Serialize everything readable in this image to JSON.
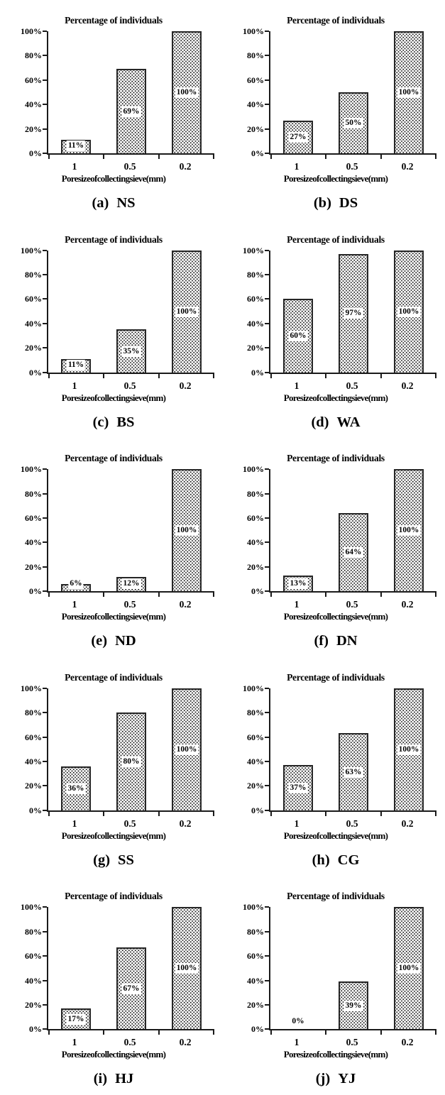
{
  "figure": {
    "background_color": "#ffffff",
    "text_color": "#000000",
    "bar_border_color": "#262626",
    "bar_fill": "white with fine black dot stipple pattern",
    "layout": "2 columns x 5 rows of small-multiple bar charts"
  },
  "chart_data": [
    {
      "type": "bar",
      "panel_label": "(a)",
      "site_code": "NS",
      "title": "Percentage of individuals",
      "xlabel": "Pore size of collecting sieve (mm)",
      "categories": [
        "1",
        "0.5",
        "0.2"
      ],
      "values": [
        11,
        69,
        100
      ],
      "value_labels": [
        "11%",
        "69%",
        "100%"
      ],
      "ylim": [
        0,
        100
      ],
      "ytick_labels": [
        "0%",
        "20%",
        "40%",
        "60%",
        "80%",
        "100%"
      ],
      "grid": false,
      "legend": "none"
    },
    {
      "type": "bar",
      "panel_label": "(b)",
      "site_code": "DS",
      "title": "Percentage of individuals",
      "xlabel": "Pore size of collecting sieve (mm)",
      "categories": [
        "1",
        "0.5",
        "0.2"
      ],
      "values": [
        27,
        50,
        100
      ],
      "value_labels": [
        "27%",
        "50%",
        "100%"
      ],
      "ylim": [
        0,
        100
      ],
      "ytick_labels": [
        "0%",
        "20%",
        "40%",
        "60%",
        "80%",
        "100%"
      ],
      "grid": false,
      "legend": "none"
    },
    {
      "type": "bar",
      "panel_label": "(c)",
      "site_code": "BS",
      "title": "Percentage of individuals",
      "xlabel": "Pore size of collecting sieve (mm)",
      "categories": [
        "1",
        "0.5",
        "0.2"
      ],
      "values": [
        11,
        35,
        100
      ],
      "value_labels": [
        "11%",
        "35%",
        "100%"
      ],
      "ylim": [
        0,
        100
      ],
      "ytick_labels": [
        "0%",
        "20%",
        "40%",
        "60%",
        "80%",
        "100%"
      ],
      "grid": false,
      "legend": "none"
    },
    {
      "type": "bar",
      "panel_label": "(d)",
      "site_code": "WA",
      "title": "Percentage of individuals",
      "xlabel": "Pore size of collecting sieve (mm)",
      "categories": [
        "1",
        "0.5",
        "0.2"
      ],
      "values": [
        60,
        97,
        100
      ],
      "value_labels": [
        "60%",
        "97%",
        "100%"
      ],
      "ylim": [
        0,
        100
      ],
      "ytick_labels": [
        "0%",
        "20%",
        "40%",
        "60%",
        "80%",
        "100%"
      ],
      "grid": false,
      "legend": "none"
    },
    {
      "type": "bar",
      "panel_label": "(e)",
      "site_code": "ND",
      "title": "Percentage of individuals",
      "xlabel": "Pore size of collecting sieve (mm)",
      "categories": [
        "1",
        "0.5",
        "0.2"
      ],
      "values": [
        6,
        12,
        100
      ],
      "value_labels": [
        "6%",
        "12%",
        "100%"
      ],
      "ylim": [
        0,
        100
      ],
      "ytick_labels": [
        "0%",
        "20%",
        "40%",
        "60%",
        "80%",
        "100%"
      ],
      "grid": false,
      "legend": "none"
    },
    {
      "type": "bar",
      "panel_label": "(f)",
      "site_code": "DN",
      "title": "Percentage of individuals",
      "xlabel": "Pore size of collecting sieve (mm)",
      "categories": [
        "1",
        "0.5",
        "0.2"
      ],
      "values": [
        13,
        64,
        100
      ],
      "value_labels": [
        "13%",
        "64%",
        "100%"
      ],
      "ylim": [
        0,
        100
      ],
      "ytick_labels": [
        "0%",
        "20%",
        "40%",
        "60%",
        "80%",
        "100%"
      ],
      "grid": false,
      "legend": "none"
    },
    {
      "type": "bar",
      "panel_label": "(g)",
      "site_code": "SS",
      "title": "Percentage of individuals",
      "xlabel": "Pore size of collecting sieve (mm)",
      "categories": [
        "1",
        "0.5",
        "0.2"
      ],
      "values": [
        36,
        80,
        100
      ],
      "value_labels": [
        "36%",
        "80%",
        "100%"
      ],
      "ylim": [
        0,
        100
      ],
      "ytick_labels": [
        "0%",
        "20%",
        "40%",
        "60%",
        "80%",
        "100%"
      ],
      "grid": false,
      "legend": "none"
    },
    {
      "type": "bar",
      "panel_label": "(h)",
      "site_code": "CG",
      "title": "Percentage of individuals",
      "xlabel": "Pore size of collecting sieve (mm)",
      "categories": [
        "1",
        "0.5",
        "0.2"
      ],
      "values": [
        37,
        63,
        100
      ],
      "value_labels": [
        "37%",
        "63%",
        "100%"
      ],
      "ylim": [
        0,
        100
      ],
      "ytick_labels": [
        "0%",
        "20%",
        "40%",
        "60%",
        "80%",
        "100%"
      ],
      "grid": false,
      "legend": "none"
    },
    {
      "type": "bar",
      "panel_label": "(i)",
      "site_code": "HJ",
      "title": "Percentage of individuals",
      "xlabel": "Pore size of collecting sieve (mm)",
      "categories": [
        "1",
        "0.5",
        "0.2"
      ],
      "values": [
        17,
        67,
        100
      ],
      "value_labels": [
        "17%",
        "67%",
        "100%"
      ],
      "ylim": [
        0,
        100
      ],
      "ytick_labels": [
        "0%",
        "20%",
        "40%",
        "60%",
        "80%",
        "100%"
      ],
      "grid": false,
      "legend": "none"
    },
    {
      "type": "bar",
      "panel_label": "(j)",
      "site_code": "YJ",
      "title": "Percentage of individuals",
      "xlabel": "Pore size of collecting sieve (mm)",
      "categories": [
        "1",
        "0.5",
        "0.2"
      ],
      "values": [
        0,
        39,
        100
      ],
      "value_labels": [
        "0%",
        "39%",
        "100%"
      ],
      "ylim": [
        0,
        100
      ],
      "ytick_labels": [
        "0%",
        "20%",
        "40%",
        "60%",
        "80%",
        "100%"
      ],
      "grid": false,
      "legend": "none"
    }
  ]
}
